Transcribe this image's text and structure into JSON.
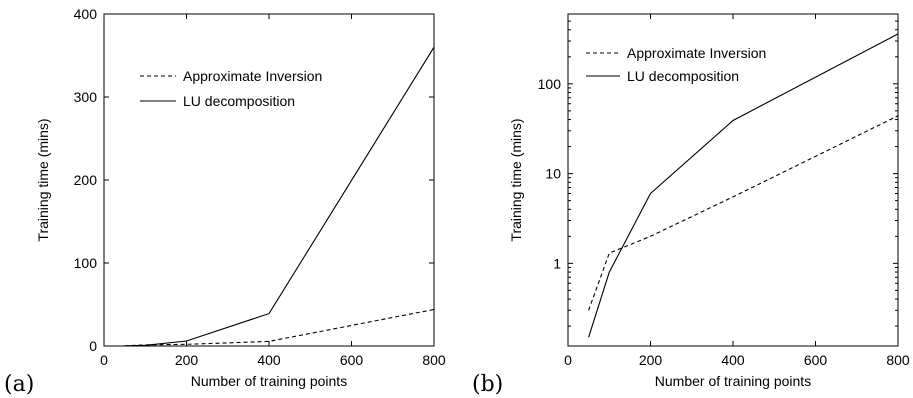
{
  "chart_data": [
    {
      "type": "line",
      "panel_label": "(a)",
      "xlabel": "Number of training points",
      "ylabel": "Training time (mins)",
      "xlim": [
        0,
        800
      ],
      "ylim": [
        0,
        400
      ],
      "yscale": "linear",
      "xticks": [
        0,
        200,
        400,
        600,
        800
      ],
      "yticks": [
        0,
        100,
        200,
        300,
        400
      ],
      "legend_position": "upper-left",
      "series": [
        {
          "name": "Approximate Inversion",
          "style": "dashed",
          "x": [
            50,
            100,
            200,
            400,
            800
          ],
          "y": [
            0.3,
            1.3,
            2,
            5.5,
            44
          ]
        },
        {
          "name": "LU decomposition",
          "style": "solid",
          "x": [
            50,
            100,
            200,
            400,
            800
          ],
          "y": [
            0.15,
            0.8,
            6,
            39,
            360
          ]
        }
      ]
    },
    {
      "type": "line",
      "panel_label": "(b)",
      "xlabel": "Number of training points",
      "ylabel": "Training time (mins)",
      "xlim": [
        0,
        800
      ],
      "ylim": [
        0.12,
        600
      ],
      "yscale": "log",
      "xticks": [
        0,
        200,
        400,
        600,
        800
      ],
      "yticks": [
        1,
        10,
        100
      ],
      "legend_position": "upper-left",
      "series": [
        {
          "name": "Approximate Inversion",
          "style": "dashed",
          "x": [
            50,
            100,
            200,
            400,
            800
          ],
          "y": [
            0.3,
            1.3,
            2,
            5.5,
            44
          ]
        },
        {
          "name": "LU decomposition",
          "style": "solid",
          "x": [
            50,
            100,
            200,
            400,
            800
          ],
          "y": [
            0.15,
            0.8,
            6,
            39,
            360
          ]
        }
      ]
    }
  ]
}
